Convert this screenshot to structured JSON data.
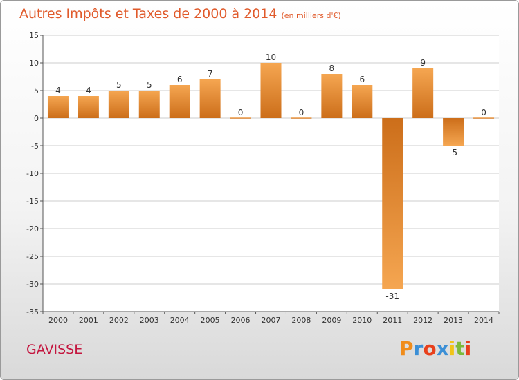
{
  "header": {
    "title": "Autres Impôts et Taxes de 2000 à 2014",
    "unit": "(en milliers d'€)"
  },
  "footer": {
    "commune": "GAVISSE",
    "logo_text": "Proxiti",
    "logo_colors": [
      "#f08c1a",
      "#3b8fd6",
      "#e8401c",
      "#3b8fd6",
      "#f0c419",
      "#7cba3a",
      "#e8401c"
    ]
  },
  "colors": {
    "bar_light": "#f5a651",
    "bar_dark": "#cc6e1a",
    "grid": "#cccccc",
    "title": "#e05a2b",
    "commune": "#c4163f"
  },
  "chart_data": {
    "type": "bar",
    "title": "Autres Impôts et Taxes de 2000 à 2014",
    "subtitle": "(en milliers d'€)",
    "categories": [
      "2000",
      "2001",
      "2002",
      "2003",
      "2004",
      "2005",
      "2006",
      "2007",
      "2008",
      "2009",
      "2010",
      "2011",
      "2012",
      "2013",
      "2014"
    ],
    "values": [
      4,
      4,
      5,
      5,
      6,
      7,
      0,
      10,
      0,
      8,
      6,
      -31,
      9,
      -5,
      0
    ],
    "data_labels": [
      "4",
      "4",
      "5",
      "5",
      "6",
      "7",
      "0",
      "10",
      "0",
      "8",
      "6",
      "-31",
      "9",
      "-5",
      "0"
    ],
    "xlabel": "",
    "ylabel": "",
    "ylim": [
      -35,
      15
    ],
    "yticks": [
      15,
      10,
      5,
      0,
      -5,
      -10,
      -15,
      -20,
      -25,
      -30,
      -35
    ],
    "grid": true
  }
}
